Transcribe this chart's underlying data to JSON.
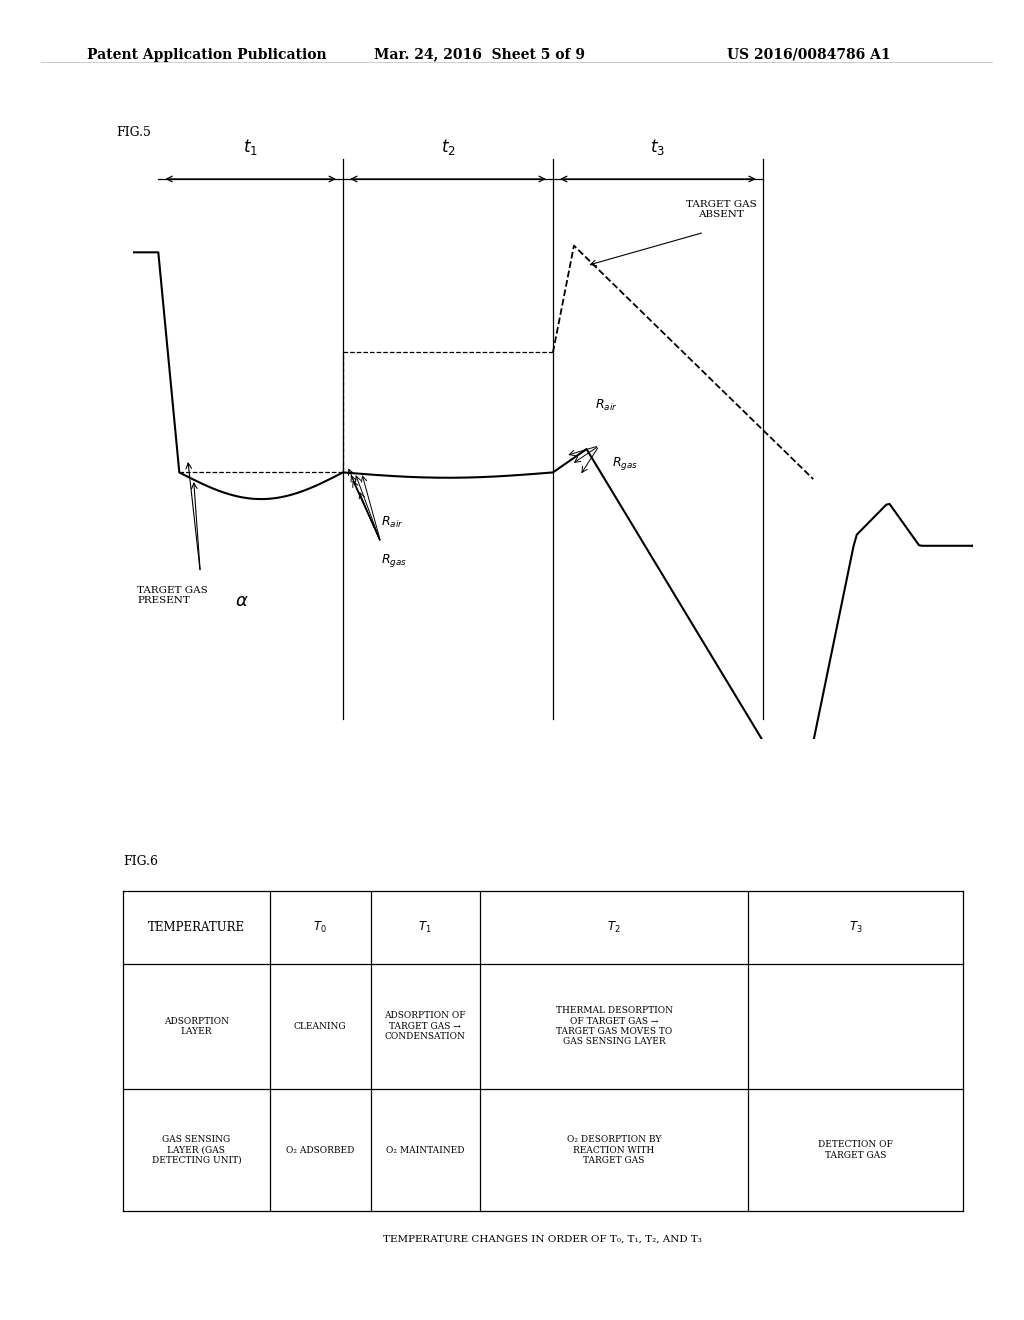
{
  "header_left": "Patent Application Publication",
  "header_center": "Mar. 24, 2016  Sheet 5 of 9",
  "header_right": "US 2016/0084786 A1",
  "fig5_label": "FIG.5",
  "fig6_label": "FIG.6",
  "bg_color": "#ffffff",
  "table_caption": "TEMPERATURE CHANGES IN ORDER OF T₀, T₁, T₂, AND T₃"
}
